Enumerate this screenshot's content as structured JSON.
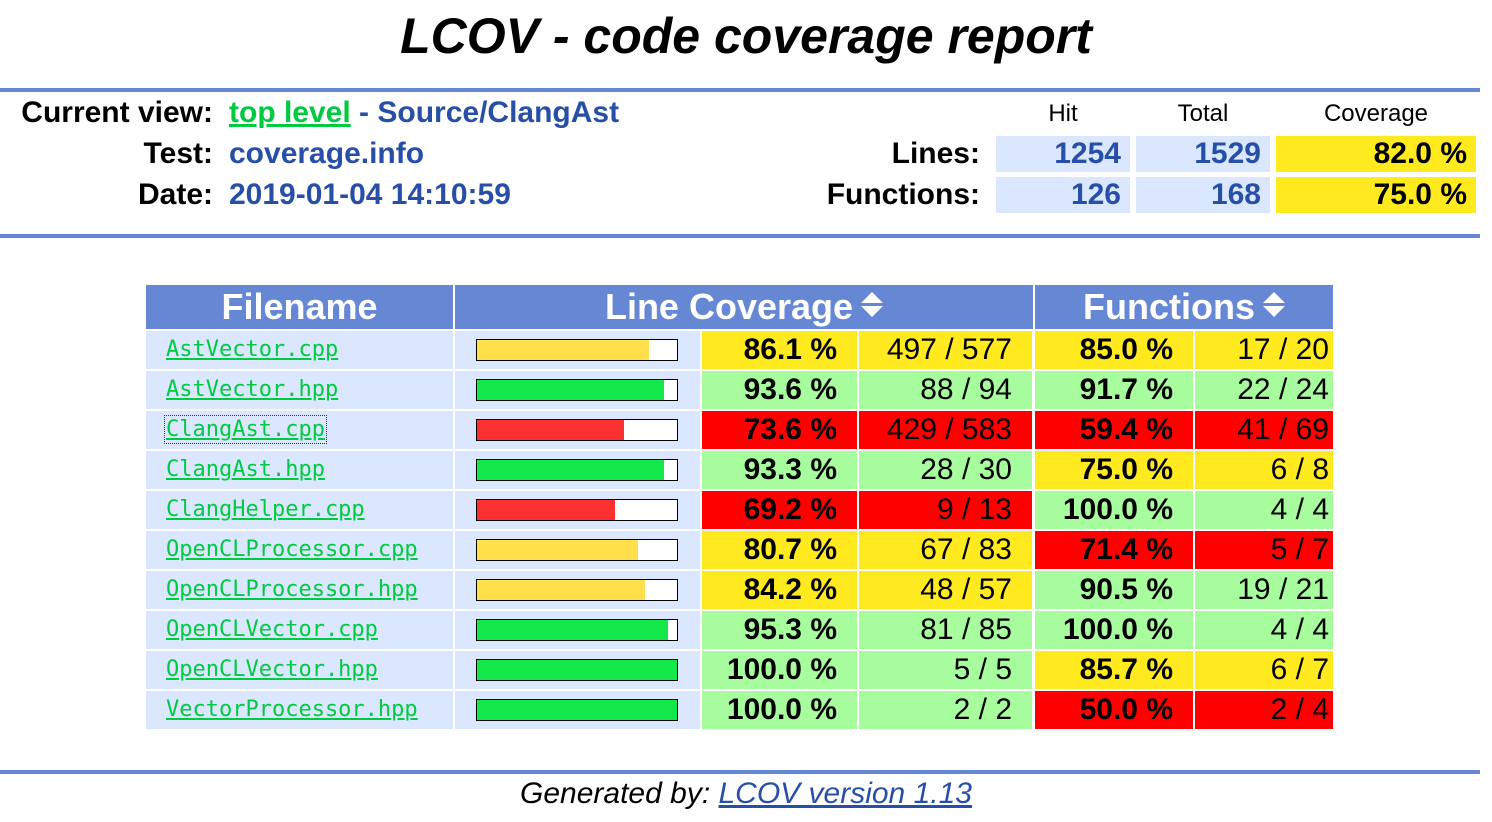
{
  "title": "LCOV - code coverage report",
  "header": {
    "current_view_label": "Current view:",
    "top_level_link": "top level",
    "path_text": " - Source/ClangAst",
    "test_label": "Test:",
    "test_value": "coverage.info",
    "date_label": "Date:",
    "date_value": "2019-01-04 14:10:59"
  },
  "summary": {
    "col_hit": "Hit",
    "col_total": "Total",
    "col_coverage": "Coverage",
    "lines_label": "Lines:",
    "lines_hit": "1254",
    "lines_total": "1529",
    "lines_coverage": "82.0 %",
    "functions_label": "Functions:",
    "functions_hit": "126",
    "functions_total": "168",
    "functions_coverage": "75.0 %"
  },
  "table": {
    "col_filename": "Filename",
    "col_line_coverage": "Line Coverage",
    "col_functions": "Functions",
    "rows": [
      {
        "file": "AstVector.cpp",
        "line_pct": "86.1 %",
        "line_frac": 0.861,
        "line_num": "497 / 577",
        "line_level": "med",
        "func_pct": "85.0 %",
        "func_num": "17 / 20",
        "func_level": "med"
      },
      {
        "file": "AstVector.hpp",
        "line_pct": "93.6 %",
        "line_frac": 0.936,
        "line_num": "88 / 94",
        "line_level": "hi",
        "func_pct": "91.7 %",
        "func_num": "22 / 24",
        "func_level": "hi"
      },
      {
        "file": "ClangAst.cpp",
        "line_pct": "73.6 %",
        "line_frac": 0.736,
        "line_num": "429 / 583",
        "line_level": "lo",
        "func_pct": "59.4 %",
        "func_num": "41 / 69",
        "func_level": "lo"
      },
      {
        "file": "ClangAst.hpp",
        "line_pct": "93.3 %",
        "line_frac": 0.933,
        "line_num": "28 / 30",
        "line_level": "hi",
        "func_pct": "75.0 %",
        "func_num": "6 / 8",
        "func_level": "med"
      },
      {
        "file": "ClangHelper.cpp",
        "line_pct": "69.2 %",
        "line_frac": 0.692,
        "line_num": "9 / 13",
        "line_level": "lo",
        "func_pct": "100.0 %",
        "func_num": "4 / 4",
        "func_level": "hi"
      },
      {
        "file": "OpenCLProcessor.cpp",
        "line_pct": "80.7 %",
        "line_frac": 0.807,
        "line_num": "67 / 83",
        "line_level": "med",
        "func_pct": "71.4 %",
        "func_num": "5 / 7",
        "func_level": "lo"
      },
      {
        "file": "OpenCLProcessor.hpp",
        "line_pct": "84.2 %",
        "line_frac": 0.842,
        "line_num": "48 / 57",
        "line_level": "med",
        "func_pct": "90.5 %",
        "func_num": "19 / 21",
        "func_level": "hi"
      },
      {
        "file": "OpenCLVector.cpp",
        "line_pct": "95.3 %",
        "line_frac": 0.953,
        "line_num": "81 / 85",
        "line_level": "hi",
        "func_pct": "100.0 %",
        "func_num": "4 / 4",
        "func_level": "hi"
      },
      {
        "file": "OpenCLVector.hpp",
        "line_pct": "100.0 %",
        "line_frac": 1.0,
        "line_num": "5 / 5",
        "line_level": "hi",
        "func_pct": "85.7 %",
        "func_num": "6 / 7",
        "func_level": "med"
      },
      {
        "file": "VectorProcessor.hpp",
        "line_pct": "100.0 %",
        "line_frac": 1.0,
        "line_num": "2 / 2",
        "line_level": "hi",
        "func_pct": "50.0 %",
        "func_num": "2 / 4",
        "func_level": "lo"
      }
    ]
  },
  "colors": {
    "hi_cell": "#a7fc9d",
    "med_cell": "#ffea20",
    "lo_cell": "#ff0000",
    "hi_bar": "#12e84a",
    "med_bar": "#ffe04a",
    "lo_bar": "#ff3030"
  },
  "footer": {
    "generated_by": "Generated by: ",
    "link_text": "LCOV version 1.13"
  }
}
